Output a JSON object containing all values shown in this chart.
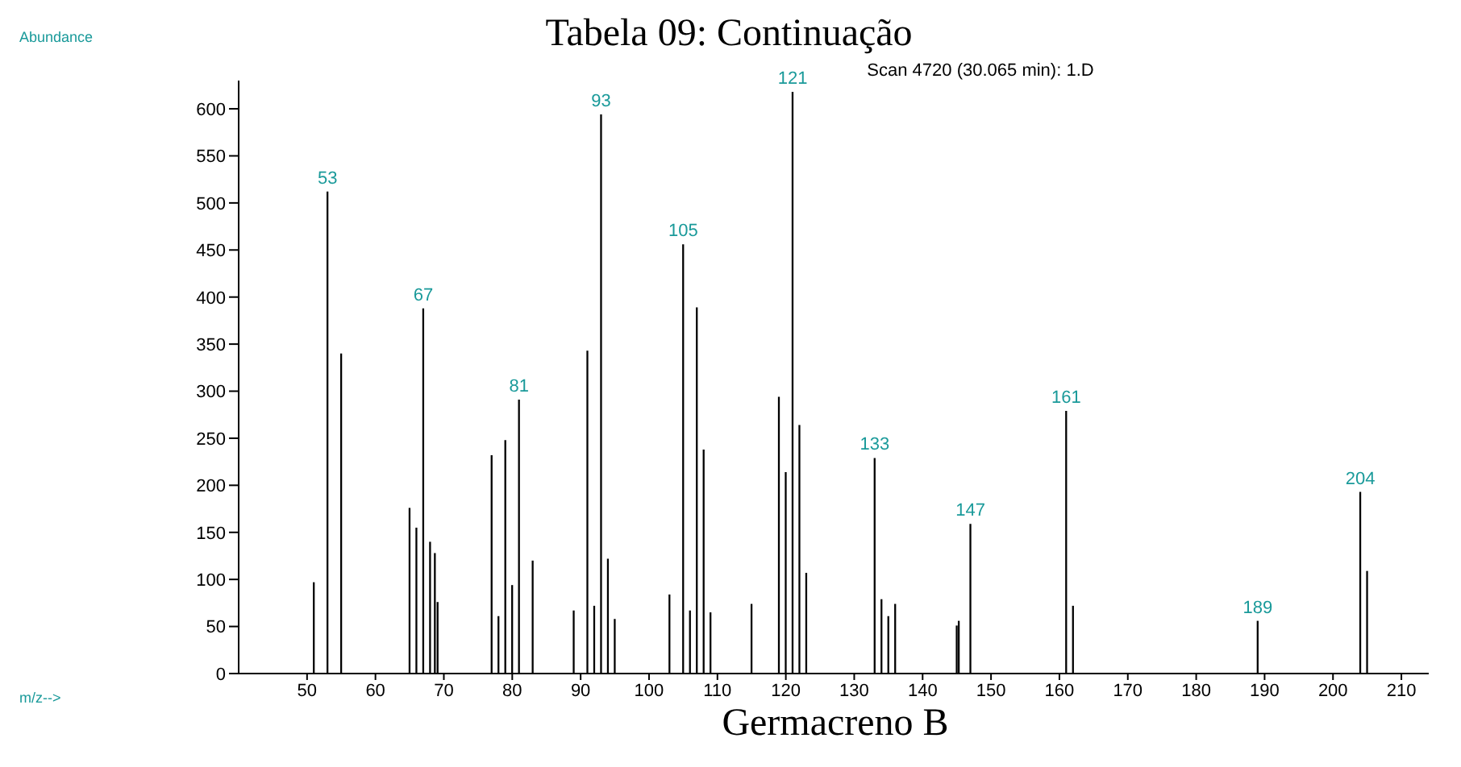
{
  "chart_data": {
    "type": "bar",
    "title": "Tabela 09: Continuação",
    "subtitle": "Scan 4720 (30.065 min): 1.D",
    "annotations": [
      "Abundance",
      "m/z-->",
      "Germacreno B",
      {
        "text": "53",
        "x": 53,
        "y": 512
      },
      {
        "text": "67",
        "x": 67,
        "y": 388
      },
      {
        "text": "81",
        "x": 81,
        "y": 291
      },
      {
        "text": "93",
        "x": 93,
        "y": 594
      },
      {
        "text": "105",
        "x": 105,
        "y": 456
      },
      {
        "text": "121",
        "x": 121,
        "y": 618
      },
      {
        "text": "133",
        "x": 133,
        "y": 229
      },
      {
        "text": "147",
        "x": 147,
        "y": 159
      },
      {
        "text": "161",
        "x": 161,
        "y": 279
      },
      {
        "text": "189",
        "x": 189,
        "y": 56
      },
      {
        "text": "204",
        "x": 204,
        "y": 193
      }
    ],
    "x": [
      51,
      53,
      55,
      65,
      66,
      67,
      68,
      68.7,
      69.1,
      77,
      78,
      79,
      80,
      81,
      83,
      89,
      91,
      92,
      93,
      94,
      95,
      103,
      105,
      106,
      107,
      108,
      109,
      115,
      119,
      120,
      121,
      122,
      123,
      133,
      134,
      135,
      136,
      145,
      145.3,
      147,
      161,
      162,
      189,
      204,
      205
    ],
    "series": [
      {
        "color": "#000000",
        "values": [
          97,
          512,
          340,
          176,
          155,
          388,
          140,
          128,
          76,
          232,
          61,
          248,
          94,
          291,
          120,
          67,
          343,
          72,
          594,
          122,
          58,
          84,
          456,
          67,
          389,
          238,
          65,
          74,
          294,
          214,
          618,
          264,
          107,
          229,
          79,
          61,
          74,
          51,
          56,
          159,
          279,
          72,
          56,
          193,
          109
        ]
      }
    ],
    "xlim": [
      40,
      214
    ],
    "xticks": [
      50,
      60,
      70,
      80,
      90,
      100,
      110,
      120,
      130,
      140,
      150,
      160,
      170,
      180,
      190,
      200,
      210
    ],
    "ylim": [
      0,
      630
    ],
    "yticks": [
      0,
      50,
      100,
      150,
      200,
      250,
      300,
      350,
      400,
      450,
      500,
      550,
      600
    ]
  }
}
